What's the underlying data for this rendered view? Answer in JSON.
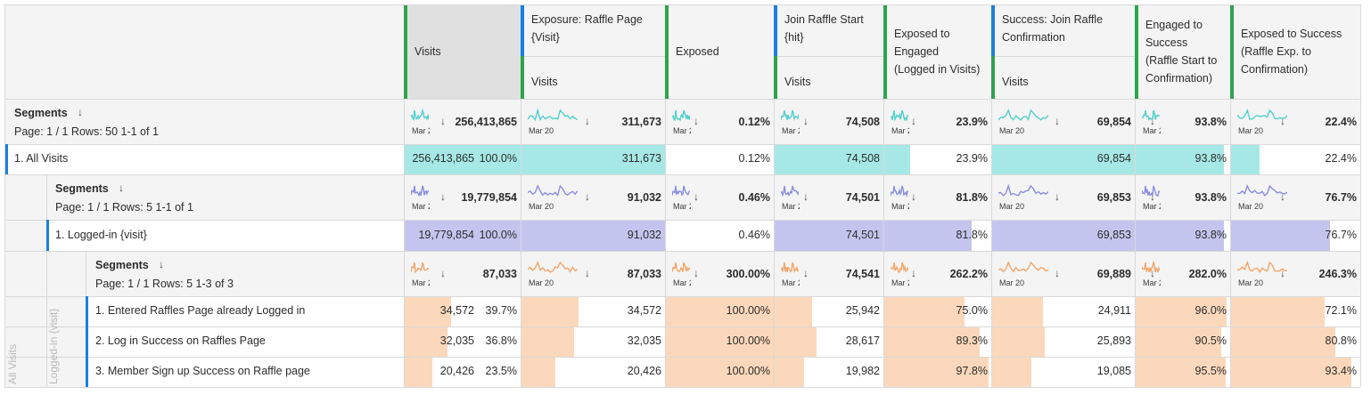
{
  "columns": [
    {
      "top": "",
      "sub": "Visits"
    },
    {
      "top": "Exposure: Raffle Page {Visit}",
      "sub": "Visits"
    },
    {
      "top": "",
      "sub": "Exposed"
    },
    {
      "top": "Join Raffle Start {hit}",
      "sub": "Visits"
    },
    {
      "top": "",
      "sub": "Exposed to Engaged (Logged in Visits)"
    },
    {
      "top": "Success: Join Raffle Confirmation",
      "sub": "Visits"
    },
    {
      "top": "",
      "sub": "Engaged to Success (Raffle Start to Confirmation)"
    },
    {
      "top": "",
      "sub": "Exposed to Success (Raffle Exp. to Confirmation)"
    }
  ],
  "colors": {
    "teal": "#a6e8e6",
    "purple": "#c4c5ee",
    "orange": "#fbd8bb",
    "green": "#2da44e",
    "blue": "#1a7fe0"
  },
  "side_labels": {
    "outer": "All Visits",
    "inner": "Logged-in {visit}"
  },
  "spark_date": "Mar 20",
  "level1": {
    "title": "Segments",
    "page": "Page: 1 / 1",
    "rows_label": "Rows:",
    "rows_val": "50",
    "range": "1-1 of 1",
    "totals": [
      "256,413,865",
      "311,673",
      "0.12%",
      "74,508",
      "23.9%",
      "69,854",
      "93.8%",
      "22.4%"
    ],
    "row": {
      "label": "1.  All Visits",
      "values": [
        "256,413,865",
        "311,673",
        "0.12%",
        "74,508",
        "23.9%",
        "69,854",
        "93.8%",
        "22.4%"
      ],
      "pct": "100.0%",
      "fracs": [
        1.0,
        1.0,
        0.0,
        1.0,
        0.239,
        1.0,
        0.938,
        0.224
      ]
    }
  },
  "level2": {
    "title": "Segments",
    "page": "Page: 1 / 1",
    "rows_label": "Rows:",
    "rows_val": "5",
    "range": "1-1 of 1",
    "totals": [
      "19,779,854",
      "91,032",
      "0.46%",
      "74,501",
      "81.8%",
      "69,853",
      "93.8%",
      "76.7%"
    ],
    "row": {
      "label": "1.  Logged-in {visit}",
      "values": [
        "19,779,854",
        "91,032",
        "0.46%",
        "74,501",
        "81.8%",
        "69,853",
        "93.8%",
        "76.7%"
      ],
      "pct": "100.0%",
      "fracs": [
        1.0,
        1.0,
        0.0,
        1.0,
        0.818,
        1.0,
        0.938,
        0.767
      ]
    }
  },
  "level3": {
    "title": "Segments",
    "page": "Page: 1 / 1",
    "rows_label": "Rows:",
    "rows_val": "5",
    "range": "1-3 of 3",
    "totals": [
      "87,033",
      "87,033",
      "300.00%",
      "74,541",
      "262.2%",
      "69,889",
      "282.0%",
      "246.3%"
    ],
    "rows": [
      {
        "label": "1.  Entered Raffles Page already Logged in",
        "values": [
          "34,572",
          "34,572",
          "100.00%",
          "25,942",
          "75.0%",
          "24,911",
          "96.0%",
          "72.1%"
        ],
        "pct": "39.7%",
        "fracs": [
          0.397,
          0.397,
          1.0,
          0.348,
          0.75,
          0.356,
          0.96,
          0.721
        ]
      },
      {
        "label": "2.  Log in Success on Raffles Page",
        "values": [
          "32,035",
          "32,035",
          "100.00%",
          "28,617",
          "89.3%",
          "25,893",
          "90.5%",
          "80.8%"
        ],
        "pct": "36.8%",
        "fracs": [
          0.368,
          0.368,
          1.0,
          0.384,
          0.893,
          0.37,
          0.905,
          0.808
        ]
      },
      {
        "label": "3.  Member Sign up Success on Raffle page",
        "values": [
          "20,426",
          "20,426",
          "100.00%",
          "19,982",
          "97.8%",
          "19,085",
          "95.5%",
          "93.4%"
        ],
        "pct": "23.5%",
        "fracs": [
          0.235,
          0.235,
          1.0,
          0.268,
          0.978,
          0.273,
          0.955,
          0.934
        ]
      }
    ]
  }
}
